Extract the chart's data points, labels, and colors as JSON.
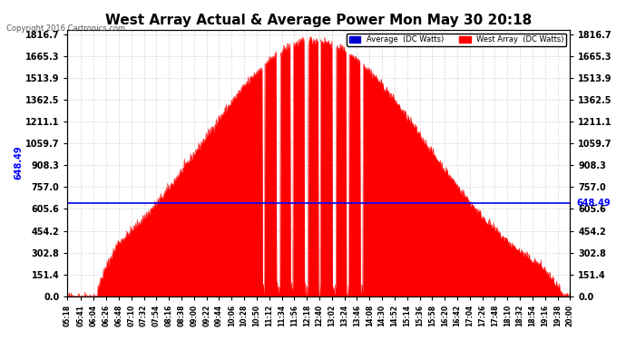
{
  "title": "West Array Actual & Average Power Mon May 30 20:18",
  "copyright": "Copyright 2016 Cartronics.com",
  "legend_avg": "Average  (DC Watts)",
  "legend_west": "West Array  (DC Watts)",
  "avg_value": 648.49,
  "ymax": 1816.7,
  "ymin": 0.0,
  "yticks": [
    0.0,
    151.4,
    302.8,
    454.2,
    605.6,
    757.0,
    908.3,
    1059.7,
    1211.1,
    1362.5,
    1513.9,
    1665.3,
    1816.7
  ],
  "bg_color": "#ffffff",
  "plot_bg_color": "#ffffff",
  "grid_color": "#cccccc",
  "fill_color": "#ff0000",
  "line_color": "#ff0000",
  "avg_line_color": "#0000ff",
  "title_color": "#000000",
  "tick_label_color": "#000000"
}
